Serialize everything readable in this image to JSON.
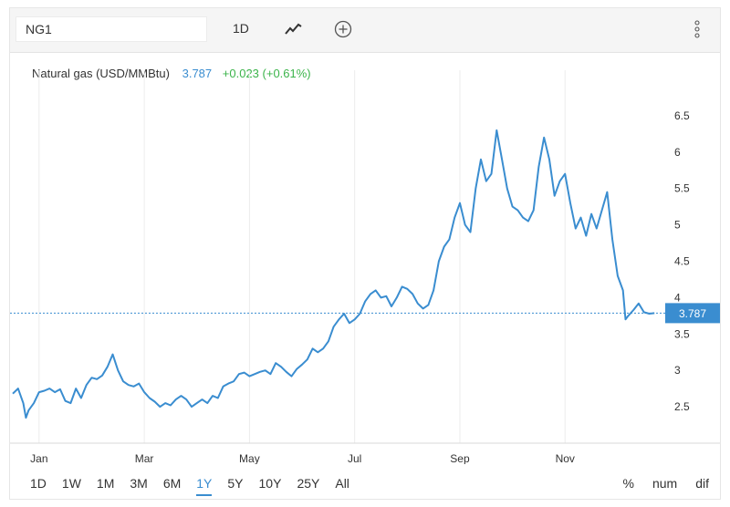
{
  "toolbar": {
    "symbol": "NG1",
    "interval": "1D",
    "chart_type_icon": "line-chart-icon",
    "add_icon": "plus-circle-icon",
    "menu_icon": "vertical-dots-icon"
  },
  "legend": {
    "name": "Natural gas (USD/MMBtu)",
    "price": "3.787",
    "change": "+0.023 (+0.61%)"
  },
  "range_buttons": [
    "1D",
    "1W",
    "1M",
    "3M",
    "6M",
    "1Y",
    "5Y",
    "10Y",
    "25Y",
    "All"
  ],
  "active_range": "1Y",
  "scale_buttons": [
    "%",
    "num",
    "dif"
  ],
  "colors": {
    "line": "#3a8dd0",
    "change_up": "#3cb44b",
    "price_tag": "#3a8dd0"
  },
  "chart_data": {
    "type": "line",
    "title": "",
    "xlabel": "",
    "ylabel": "",
    "ylim": [
      2.0,
      7.0
    ],
    "xlim": [
      0,
      12.3
    ],
    "x_tick_labels": [
      {
        "label": "Jan",
        "x": 0.5
      },
      {
        "label": "Mar",
        "x": 2.5
      },
      {
        "label": "May",
        "x": 4.5
      },
      {
        "label": "Jul",
        "x": 6.5
      },
      {
        "label": "Sep",
        "x": 8.5
      },
      {
        "label": "Nov",
        "x": 10.5
      }
    ],
    "y_ticks": [
      2.5,
      3,
      3.5,
      4,
      4.5,
      5,
      5.5,
      6,
      6.5
    ],
    "y_tick_labels": [
      "2.5",
      "3",
      "3.5",
      "4",
      "4.5",
      "5",
      "5.5",
      "6",
      "6.5"
    ],
    "last_value": 3.787,
    "last_value_label": "3.787",
    "series": [
      {
        "values": [
          [
            0.0,
            2.68
          ],
          [
            0.1,
            2.75
          ],
          [
            0.2,
            2.55
          ],
          [
            0.25,
            2.35
          ],
          [
            0.3,
            2.45
          ],
          [
            0.4,
            2.55
          ],
          [
            0.5,
            2.7
          ],
          [
            0.6,
            2.72
          ],
          [
            0.7,
            2.75
          ],
          [
            0.8,
            2.7
          ],
          [
            0.9,
            2.74
          ],
          [
            1.0,
            2.58
          ],
          [
            1.1,
            2.55
          ],
          [
            1.2,
            2.75
          ],
          [
            1.3,
            2.62
          ],
          [
            1.4,
            2.8
          ],
          [
            1.5,
            2.9
          ],
          [
            1.6,
            2.88
          ],
          [
            1.7,
            2.93
          ],
          [
            1.8,
            3.05
          ],
          [
            1.9,
            3.22
          ],
          [
            2.0,
            3.0
          ],
          [
            2.1,
            2.85
          ],
          [
            2.2,
            2.8
          ],
          [
            2.3,
            2.78
          ],
          [
            2.4,
            2.82
          ],
          [
            2.5,
            2.7
          ],
          [
            2.6,
            2.62
          ],
          [
            2.7,
            2.57
          ],
          [
            2.8,
            2.5
          ],
          [
            2.9,
            2.55
          ],
          [
            3.0,
            2.52
          ],
          [
            3.1,
            2.6
          ],
          [
            3.2,
            2.65
          ],
          [
            3.3,
            2.6
          ],
          [
            3.4,
            2.5
          ],
          [
            3.5,
            2.55
          ],
          [
            3.6,
            2.6
          ],
          [
            3.7,
            2.55
          ],
          [
            3.8,
            2.65
          ],
          [
            3.9,
            2.62
          ],
          [
            4.0,
            2.78
          ],
          [
            4.1,
            2.82
          ],
          [
            4.2,
            2.85
          ],
          [
            4.3,
            2.95
          ],
          [
            4.4,
            2.97
          ],
          [
            4.5,
            2.92
          ],
          [
            4.6,
            2.95
          ],
          [
            4.7,
            2.98
          ],
          [
            4.8,
            3.0
          ],
          [
            4.9,
            2.95
          ],
          [
            5.0,
            3.1
          ],
          [
            5.1,
            3.05
          ],
          [
            5.2,
            2.98
          ],
          [
            5.3,
            2.92
          ],
          [
            5.4,
            3.02
          ],
          [
            5.5,
            3.08
          ],
          [
            5.6,
            3.15
          ],
          [
            5.7,
            3.3
          ],
          [
            5.8,
            3.25
          ],
          [
            5.9,
            3.3
          ],
          [
            6.0,
            3.4
          ],
          [
            6.1,
            3.6
          ],
          [
            6.2,
            3.7
          ],
          [
            6.3,
            3.78
          ],
          [
            6.4,
            3.65
          ],
          [
            6.5,
            3.7
          ],
          [
            6.6,
            3.78
          ],
          [
            6.7,
            3.95
          ],
          [
            6.8,
            4.05
          ],
          [
            6.9,
            4.1
          ],
          [
            7.0,
            4.0
          ],
          [
            7.1,
            4.02
          ],
          [
            7.2,
            3.88
          ],
          [
            7.3,
            4.0
          ],
          [
            7.4,
            4.15
          ],
          [
            7.5,
            4.12
          ],
          [
            7.6,
            4.05
          ],
          [
            7.7,
            3.92
          ],
          [
            7.8,
            3.85
          ],
          [
            7.9,
            3.9
          ],
          [
            8.0,
            4.1
          ],
          [
            8.1,
            4.5
          ],
          [
            8.2,
            4.7
          ],
          [
            8.3,
            4.8
          ],
          [
            8.4,
            5.1
          ],
          [
            8.5,
            5.3
          ],
          [
            8.6,
            5.0
          ],
          [
            8.7,
            4.9
          ],
          [
            8.8,
            5.5
          ],
          [
            8.9,
            5.9
          ],
          [
            9.0,
            5.6
          ],
          [
            9.1,
            5.7
          ],
          [
            9.2,
            6.3
          ],
          [
            9.3,
            5.9
          ],
          [
            9.4,
            5.5
          ],
          [
            9.5,
            5.25
          ],
          [
            9.6,
            5.2
          ],
          [
            9.7,
            5.1
          ],
          [
            9.8,
            5.05
          ],
          [
            9.9,
            5.2
          ],
          [
            10.0,
            5.8
          ],
          [
            10.1,
            6.2
          ],
          [
            10.2,
            5.9
          ],
          [
            10.3,
            5.4
          ],
          [
            10.4,
            5.6
          ],
          [
            10.5,
            5.7
          ],
          [
            10.6,
            5.3
          ],
          [
            10.7,
            4.95
          ],
          [
            10.8,
            5.1
          ],
          [
            10.9,
            4.85
          ],
          [
            11.0,
            5.15
          ],
          [
            11.1,
            4.95
          ],
          [
            11.2,
            5.2
          ],
          [
            11.3,
            5.45
          ],
          [
            11.4,
            4.8
          ],
          [
            11.5,
            4.3
          ],
          [
            11.6,
            4.1
          ],
          [
            11.65,
            3.7
          ],
          [
            11.7,
            3.75
          ],
          [
            11.8,
            3.83
          ],
          [
            11.9,
            3.92
          ],
          [
            12.0,
            3.8
          ],
          [
            12.1,
            3.78
          ],
          [
            12.2,
            3.787
          ]
        ]
      }
    ]
  }
}
